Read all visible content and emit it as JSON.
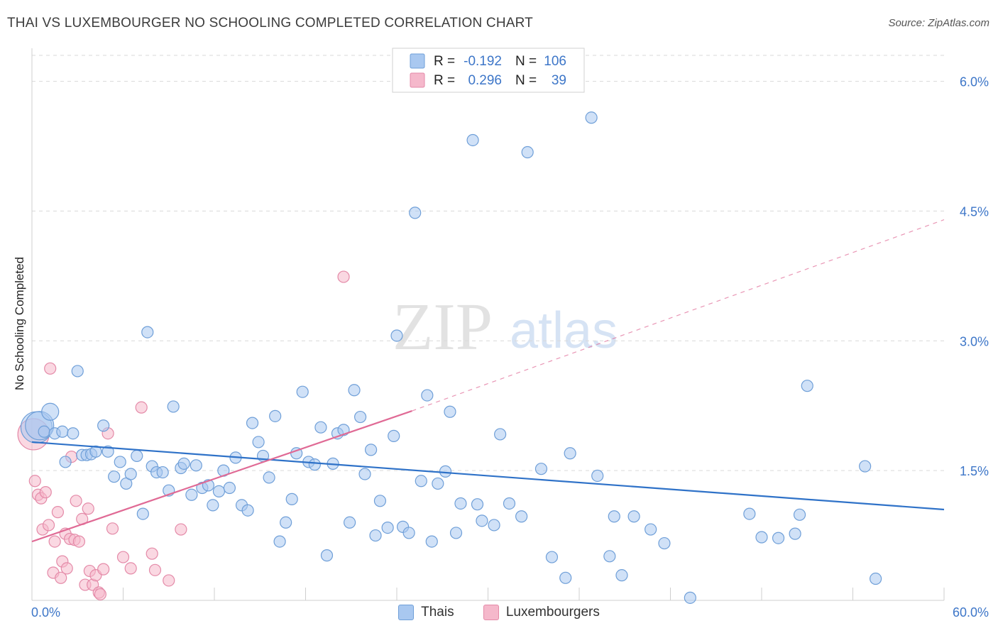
{
  "title": "THAI VS LUXEMBOURGER NO SCHOOLING COMPLETED CORRELATION CHART",
  "source": "Source: ZipAtlas.com",
  "watermark": {
    "zip": "ZIP",
    "atlas": "atlas"
  },
  "colors": {
    "thai_fill": "#a9c8f0",
    "thai_stroke": "#6f9fd8",
    "thai_line": "#2f72c8",
    "lux_fill": "#f5b8cb",
    "lux_stroke": "#e48aa8",
    "lux_line": "#e06a95",
    "tick_label": "#3d76c8",
    "grid": "#d9d9d9"
  },
  "legend_top": {
    "rows": [
      {
        "r_label": "R =",
        "r_value": "-0.192",
        "n_label": "N =",
        "n_value": "106",
        "series": "thai"
      },
      {
        "r_label": "R =",
        "r_value": "0.296",
        "n_label": "N =",
        "n_value": "39",
        "series": "lux"
      }
    ]
  },
  "legend_bottom": [
    {
      "label": "Thais",
      "series": "thai"
    },
    {
      "label": "Luxembourgers",
      "series": "lux"
    }
  ],
  "chart_data": {
    "type": "scatter",
    "title": "THAI VS LUXEMBOURGER NO SCHOOLING COMPLETED CORRELATION CHART",
    "xlabel": "",
    "ylabel": "No Schooling Completed",
    "xlim": [
      0,
      60
    ],
    "ylim": [
      0,
      6.3
    ],
    "x_tick_labels": [
      "0.0%",
      "60.0%"
    ],
    "y_ticks": [
      1.5,
      3.0,
      4.5,
      6.0
    ],
    "y_tick_labels": [
      "1.5%",
      "3.0%",
      "4.5%",
      "6.0%"
    ],
    "grid": true,
    "series": [
      {
        "name": "Thais",
        "key": "thai",
        "trend": {
          "x": [
            0,
            60
          ],
          "y": [
            1.83,
            1.05
          ],
          "dashed_to": null
        },
        "points": [
          [
            0.3,
            2.0
          ],
          [
            0.5,
            2.02
          ],
          [
            0.8,
            1.95
          ],
          [
            1.2,
            2.18
          ],
          [
            1.5,
            1.93
          ],
          [
            2.0,
            1.95
          ],
          [
            2.2,
            1.6
          ],
          [
            2.7,
            1.93
          ],
          [
            3.0,
            2.65
          ],
          [
            3.3,
            1.68
          ],
          [
            3.6,
            1.68
          ],
          [
            3.9,
            1.69
          ],
          [
            4.2,
            1.72
          ],
          [
            4.7,
            2.02
          ],
          [
            5.0,
            1.72
          ],
          [
            5.4,
            1.43
          ],
          [
            5.8,
            1.6
          ],
          [
            6.2,
            1.35
          ],
          [
            6.5,
            1.46
          ],
          [
            6.9,
            1.67
          ],
          [
            7.3,
            1.0
          ],
          [
            7.6,
            3.1
          ],
          [
            7.9,
            1.55
          ],
          [
            8.2,
            1.48
          ],
          [
            8.6,
            1.48
          ],
          [
            9.0,
            1.27
          ],
          [
            9.3,
            2.24
          ],
          [
            9.8,
            1.53
          ],
          [
            10.0,
            1.58
          ],
          [
            10.5,
            1.22
          ],
          [
            10.8,
            1.56
          ],
          [
            11.2,
            1.3
          ],
          [
            11.6,
            1.33
          ],
          [
            11.9,
            1.1
          ],
          [
            12.3,
            1.26
          ],
          [
            12.6,
            1.5
          ],
          [
            13.0,
            1.3
          ],
          [
            13.4,
            1.65
          ],
          [
            13.8,
            1.1
          ],
          [
            14.2,
            1.04
          ],
          [
            14.5,
            2.05
          ],
          [
            14.9,
            1.83
          ],
          [
            15.2,
            1.67
          ],
          [
            15.6,
            1.42
          ],
          [
            16.0,
            2.13
          ],
          [
            16.3,
            0.68
          ],
          [
            16.7,
            0.9
          ],
          [
            17.1,
            1.17
          ],
          [
            17.4,
            1.7
          ],
          [
            17.8,
            2.41
          ],
          [
            18.2,
            1.6
          ],
          [
            18.6,
            1.57
          ],
          [
            19.0,
            2.0
          ],
          [
            19.4,
            0.52
          ],
          [
            19.8,
            1.58
          ],
          [
            20.1,
            1.93
          ],
          [
            20.5,
            1.97
          ],
          [
            20.9,
            0.9
          ],
          [
            21.2,
            2.43
          ],
          [
            21.6,
            2.12
          ],
          [
            21.9,
            1.46
          ],
          [
            22.3,
            1.74
          ],
          [
            22.6,
            0.75
          ],
          [
            22.9,
            1.15
          ],
          [
            23.4,
            0.84
          ],
          [
            23.8,
            1.9
          ],
          [
            24.0,
            3.06
          ],
          [
            24.4,
            0.85
          ],
          [
            24.8,
            0.78
          ],
          [
            25.2,
            4.48
          ],
          [
            25.6,
            1.38
          ],
          [
            26.0,
            2.37
          ],
          [
            26.3,
            0.68
          ],
          [
            26.7,
            1.35
          ],
          [
            27.2,
            1.49
          ],
          [
            27.5,
            2.18
          ],
          [
            27.9,
            0.78
          ],
          [
            28.2,
            1.12
          ],
          [
            29.0,
            5.32
          ],
          [
            29.3,
            1.11
          ],
          [
            29.6,
            0.92
          ],
          [
            30.4,
            0.87
          ],
          [
            30.8,
            1.92
          ],
          [
            31.4,
            1.12
          ],
          [
            32.2,
            0.97
          ],
          [
            32.6,
            5.18
          ],
          [
            33.5,
            1.52
          ],
          [
            34.2,
            0.5
          ],
          [
            35.1,
            0.26
          ],
          [
            35.4,
            1.7
          ],
          [
            36.8,
            5.58
          ],
          [
            37.2,
            1.44
          ],
          [
            38.0,
            0.51
          ],
          [
            38.3,
            0.97
          ],
          [
            38.8,
            0.29
          ],
          [
            39.6,
            0.97
          ],
          [
            40.7,
            0.82
          ],
          [
            41.6,
            0.66
          ],
          [
            43.3,
            0.03
          ],
          [
            47.2,
            1.0
          ],
          [
            48.0,
            0.73
          ],
          [
            49.1,
            0.72
          ],
          [
            50.2,
            0.77
          ],
          [
            50.5,
            0.99
          ],
          [
            51.0,
            2.48
          ],
          [
            54.8,
            1.55
          ],
          [
            55.5,
            0.25
          ]
        ],
        "sizes": {
          "0": 22,
          "1": 20,
          "3": 12
        }
      },
      {
        "name": "Luxembourgers",
        "key": "lux",
        "trend": {
          "x": [
            0,
            25
          ],
          "y": [
            0.68,
            2.19
          ],
          "dashed_to": [
            60,
            4.4
          ]
        },
        "points": [
          [
            0.1,
            1.92
          ],
          [
            0.2,
            1.38
          ],
          [
            0.4,
            1.22
          ],
          [
            0.6,
            1.18
          ],
          [
            0.7,
            0.82
          ],
          [
            0.9,
            1.25
          ],
          [
            1.1,
            0.87
          ],
          [
            1.2,
            2.68
          ],
          [
            1.4,
            0.32
          ],
          [
            1.5,
            0.68
          ],
          [
            1.7,
            1.02
          ],
          [
            1.9,
            0.26
          ],
          [
            2.0,
            0.45
          ],
          [
            2.2,
            0.77
          ],
          [
            2.3,
            0.37
          ],
          [
            2.5,
            0.71
          ],
          [
            2.6,
            1.66
          ],
          [
            2.8,
            0.7
          ],
          [
            2.9,
            1.15
          ],
          [
            3.1,
            0.68
          ],
          [
            3.3,
            0.94
          ],
          [
            3.5,
            0.18
          ],
          [
            3.7,
            1.06
          ],
          [
            3.8,
            0.34
          ],
          [
            4.0,
            0.18
          ],
          [
            4.2,
            0.29
          ],
          [
            4.4,
            0.09
          ],
          [
            4.5,
            0.07
          ],
          [
            4.7,
            0.36
          ],
          [
            5.0,
            1.93
          ],
          [
            5.3,
            0.83
          ],
          [
            6.0,
            0.5
          ],
          [
            6.5,
            0.37
          ],
          [
            7.2,
            2.23
          ],
          [
            7.9,
            0.54
          ],
          [
            8.1,
            0.35
          ],
          [
            9.0,
            0.23
          ],
          [
            9.8,
            0.82
          ],
          [
            20.5,
            3.74
          ]
        ],
        "sizes": {
          "0": 22
        }
      }
    ]
  }
}
